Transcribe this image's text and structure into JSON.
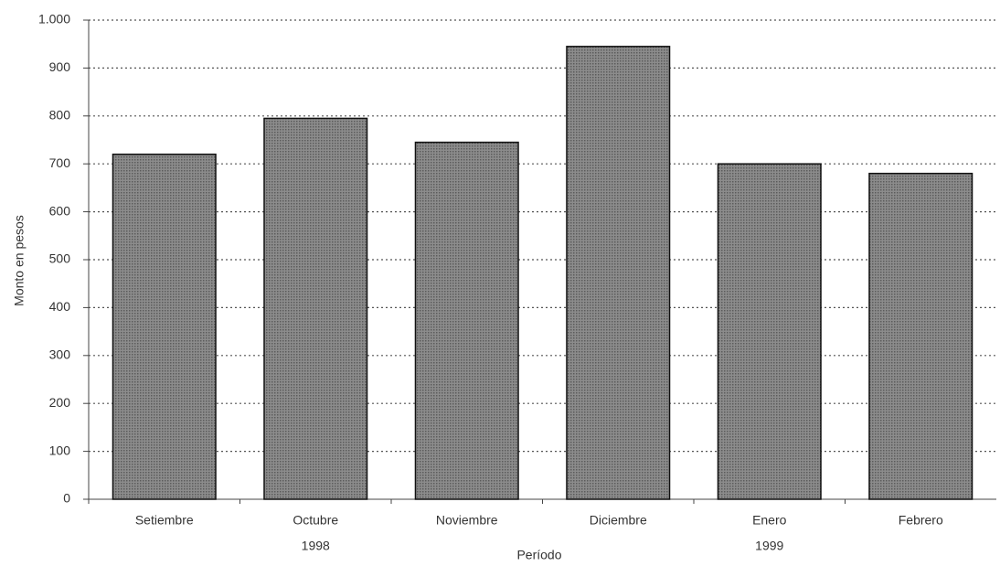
{
  "chart_data": {
    "type": "bar",
    "y_label": "Monto en pesos",
    "x_label": "Período",
    "categories": [
      "Setiembre",
      "Octubre",
      "Noviembre",
      "Diciembre",
      "Enero",
      "Febrero"
    ],
    "values": [
      720,
      795,
      745,
      945,
      700,
      680
    ],
    "year_labels": [
      "1998",
      "1999"
    ],
    "color": "#8c8c8c",
    "ylim": [
      0,
      1000
    ],
    "yticks": [
      0,
      100,
      200,
      300,
      400,
      500,
      600,
      700,
      800,
      900,
      {
        "value": 1000,
        "label": "1.000"
      }
    ],
    "grid": true
  }
}
